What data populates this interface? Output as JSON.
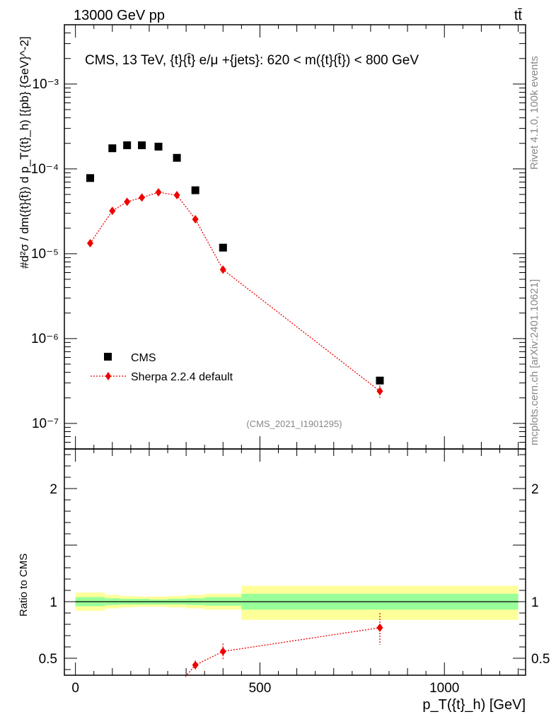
{
  "header": {
    "energy_label": "13000 GeV pp",
    "process_label": "tt̄",
    "plot_title": "CMS, 13 TeV, {t}{t̄} e/μ +{jets}: 620 < m({t}{t̄}) < 800 GeV",
    "analysis_id": "(CMS_2021_I1901295)",
    "side_rivet": "Rivet 4.1.0,  100k events",
    "side_site": "mcplots.cern.ch [arXiv:2401.10621]"
  },
  "chart_data": [
    {
      "type": "scatter",
      "panel": "main",
      "ylabel": "#d²σ / dm({t}{t̄}) d p_T({t}_h) [{pb} {GeV}^-2]",
      "xlabel": "",
      "yscale": "log",
      "ylim": [
        5e-08,
        0.005
      ],
      "xlim": [
        -30,
        1220
      ],
      "y_tick_labels": [
        "10⁻⁷",
        "10⁻⁶",
        "10⁻⁵",
        "10⁻⁴",
        "10⁻³"
      ],
      "y_tick_values": [
        1e-07,
        1e-06,
        1e-05,
        0.0001,
        0.001
      ],
      "legend_position": "bottom-left",
      "series": [
        {
          "name": "CMS",
          "marker": "square",
          "color": "#000000",
          "x": [
            40,
            100,
            140,
            180,
            225,
            275,
            325,
            400,
            825
          ],
          "y": [
            7.8e-05,
            0.000175,
            0.00019,
            0.00019,
            0.000183,
            0.000135,
            5.6e-05,
            1.18e-05,
            3.2e-07
          ]
        },
        {
          "name": "Sherpa 2.2.4 default",
          "marker": "diamond",
          "line": "dotted",
          "color": "#ee0000",
          "x": [
            40,
            100,
            140,
            180,
            225,
            275,
            325,
            400,
            825
          ],
          "y": [
            1.33e-05,
            3.2e-05,
            4.1e-05,
            4.6e-05,
            5.3e-05,
            4.9e-05,
            2.55e-05,
            6.5e-06,
            2.4e-07
          ],
          "yerr": [
            null,
            null,
            null,
            null,
            null,
            null,
            null,
            null,
            [
              2e-07,
              2.8e-07
            ]
          ]
        }
      ]
    },
    {
      "type": "line",
      "panel": "ratio",
      "ylabel": "Ratio to CMS",
      "xlabel": "p_T({t}_h) [GeV]",
      "ylim": [
        0.35,
        2.35
      ],
      "xlim": [
        -30,
        1220
      ],
      "x_tick_labels": [
        "0",
        "500",
        "1000"
      ],
      "x_tick_values": [
        0,
        500,
        1000
      ],
      "y_tick_labels": [
        "0.5",
        "1",
        "2"
      ],
      "y_tick_values": [
        0.5,
        1,
        2
      ],
      "uncertainty_bands": {
        "bin_edges": [
          0,
          80,
          120,
          160,
          200,
          250,
          300,
          350,
          450,
          1200
        ],
        "green_low": [
          0.96,
          0.97,
          0.975,
          0.975,
          0.975,
          0.975,
          0.97,
          0.965,
          0.93
        ],
        "green_high": [
          1.04,
          1.03,
          1.025,
          1.025,
          1.02,
          1.025,
          1.03,
          1.04,
          1.07
        ],
        "yellow_low": [
          0.92,
          0.94,
          0.95,
          0.955,
          0.955,
          0.95,
          0.94,
          0.93,
          0.84
        ],
        "yellow_high": [
          1.08,
          1.06,
          1.05,
          1.045,
          1.045,
          1.05,
          1.06,
          1.07,
          1.14
        ],
        "green_color": "#99ff99",
        "yellow_color": "#ffff99"
      },
      "series": [
        {
          "name": "Sherpa 2.2.4 default",
          "marker": "diamond",
          "line": "dotted",
          "color": "#ee0000",
          "x": [
            325,
            400,
            825
          ],
          "y": [
            0.44,
            0.56,
            0.77
          ],
          "yerr": [
            [
              0.4,
              0.48
            ],
            [
              0.49,
              0.63
            ],
            [
              0.62,
              0.9
            ]
          ]
        }
      ]
    }
  ]
}
